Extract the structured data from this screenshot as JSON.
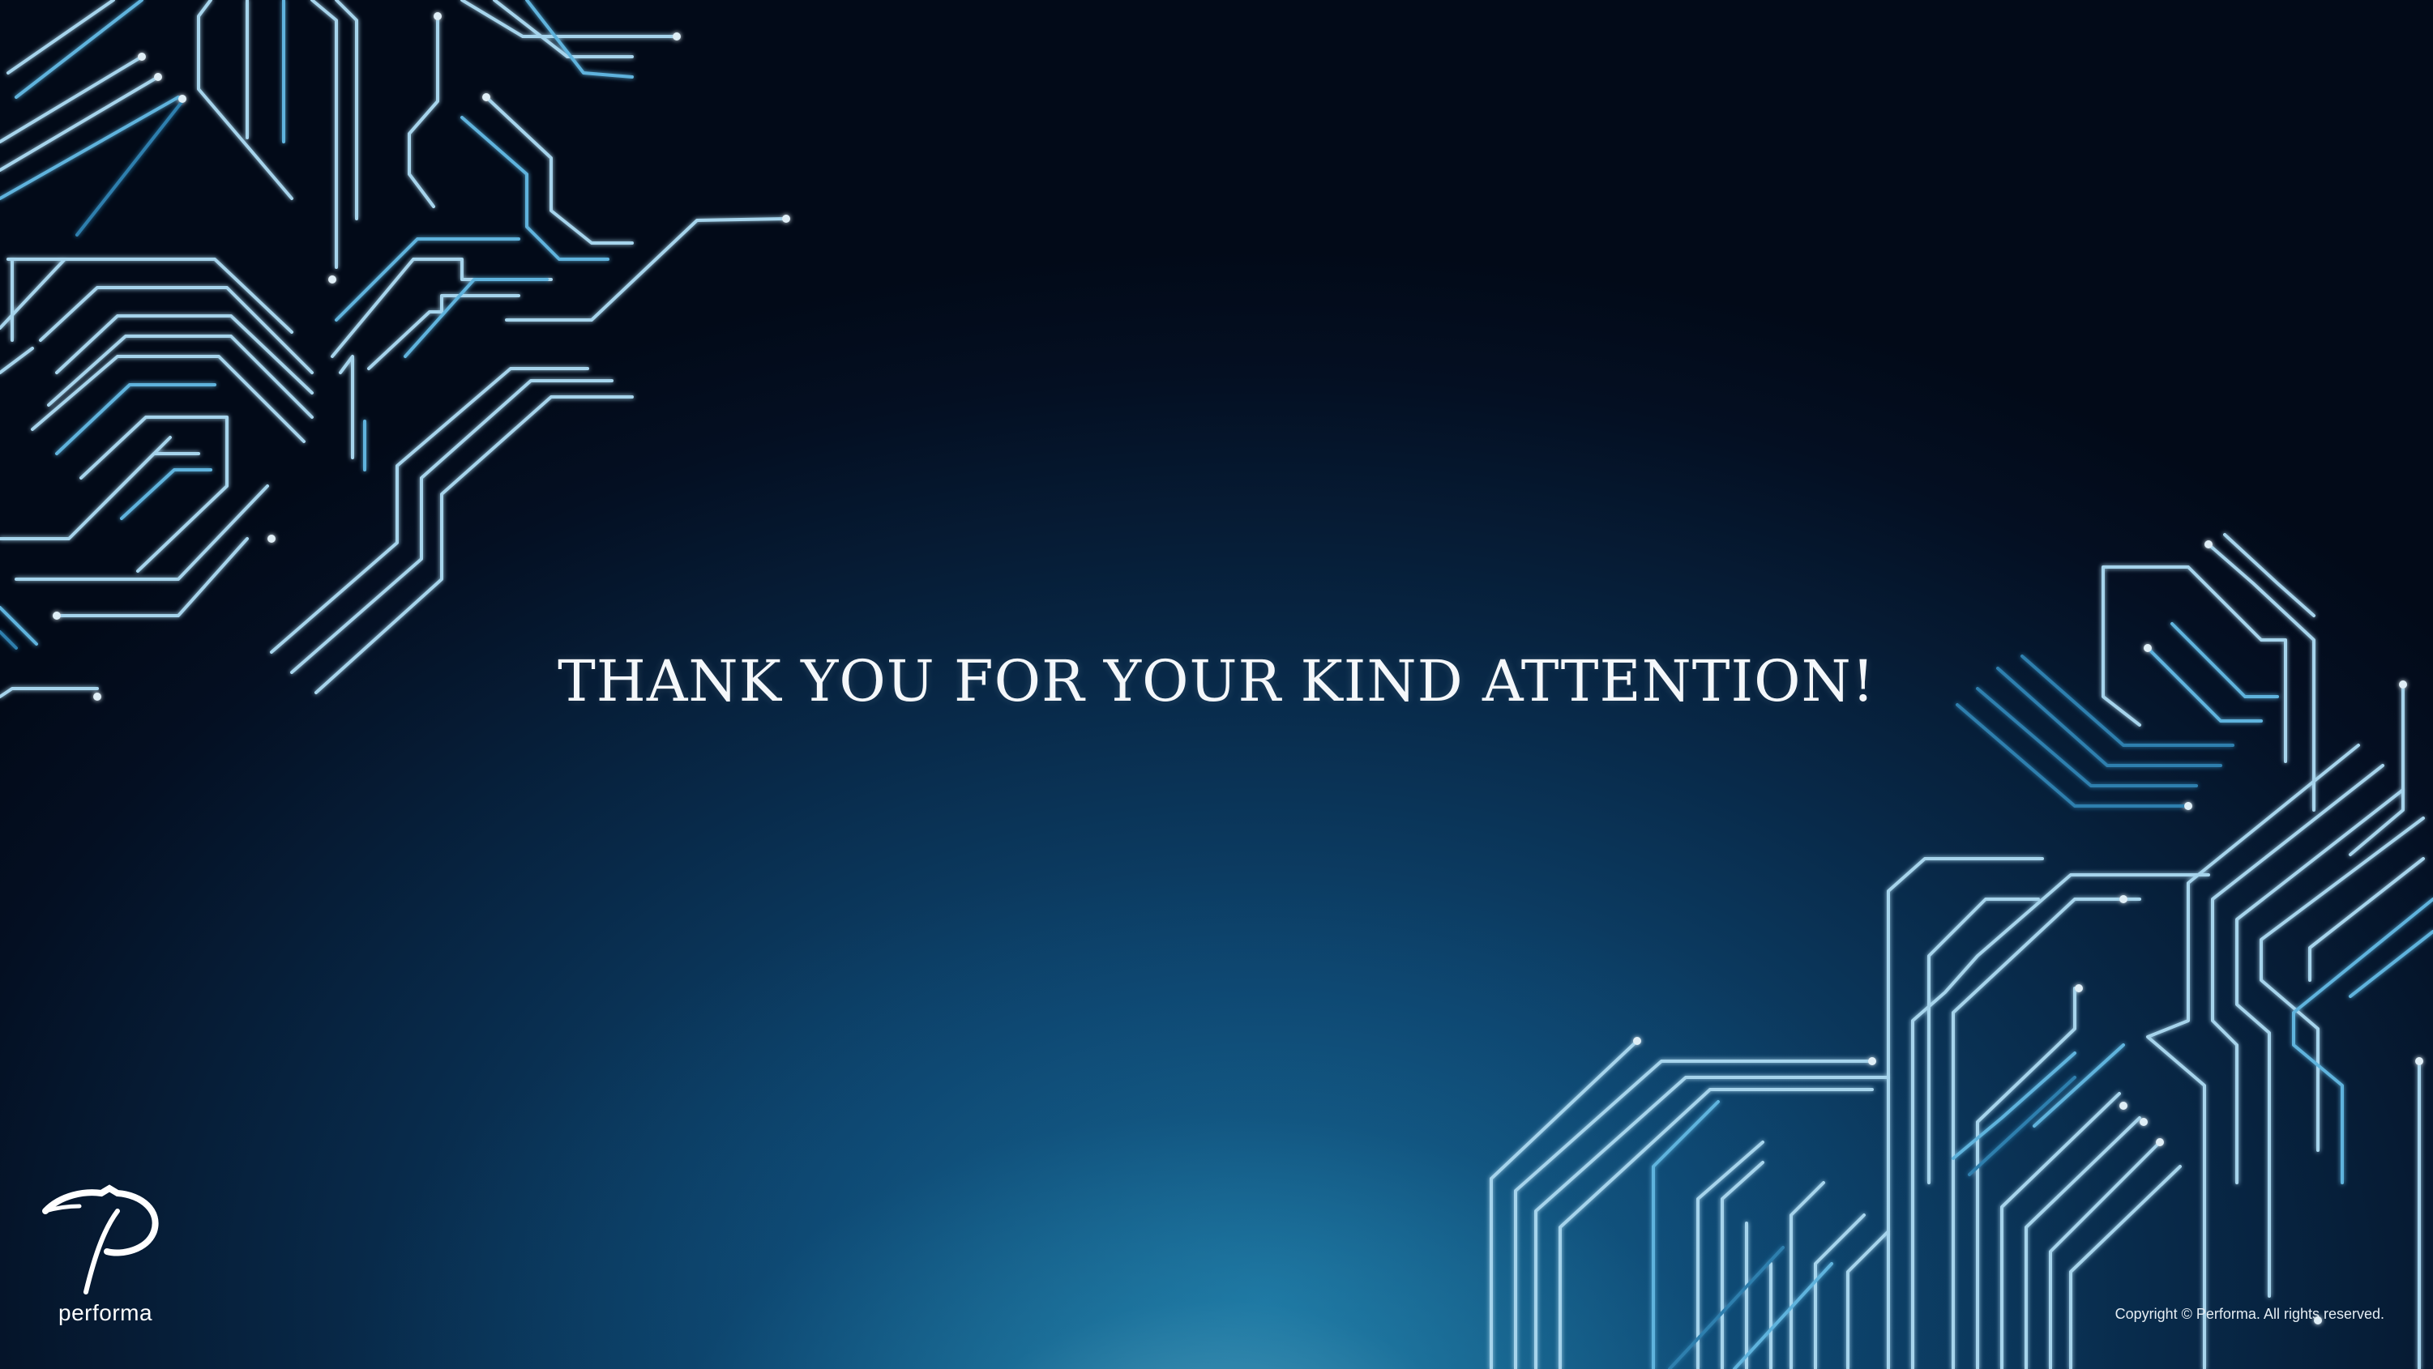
{
  "slide": {
    "headline": "THANK YOU FOR YOUR KIND ATTENTION!",
    "copyright": "Copyright © Performa. All rights reserved."
  },
  "logo": {
    "wordmark": "performa",
    "icon": "performa-p-logo-icon"
  },
  "decorations": {
    "top_left": "circuit-pattern",
    "bottom_right": "circuit-pattern"
  },
  "colors": {
    "background_dark": "#020a18",
    "background_mid": "#0e4670",
    "background_glow": "#78d2e6",
    "circuit_line": "#a6d4ec",
    "text": "#f4f7fa"
  }
}
